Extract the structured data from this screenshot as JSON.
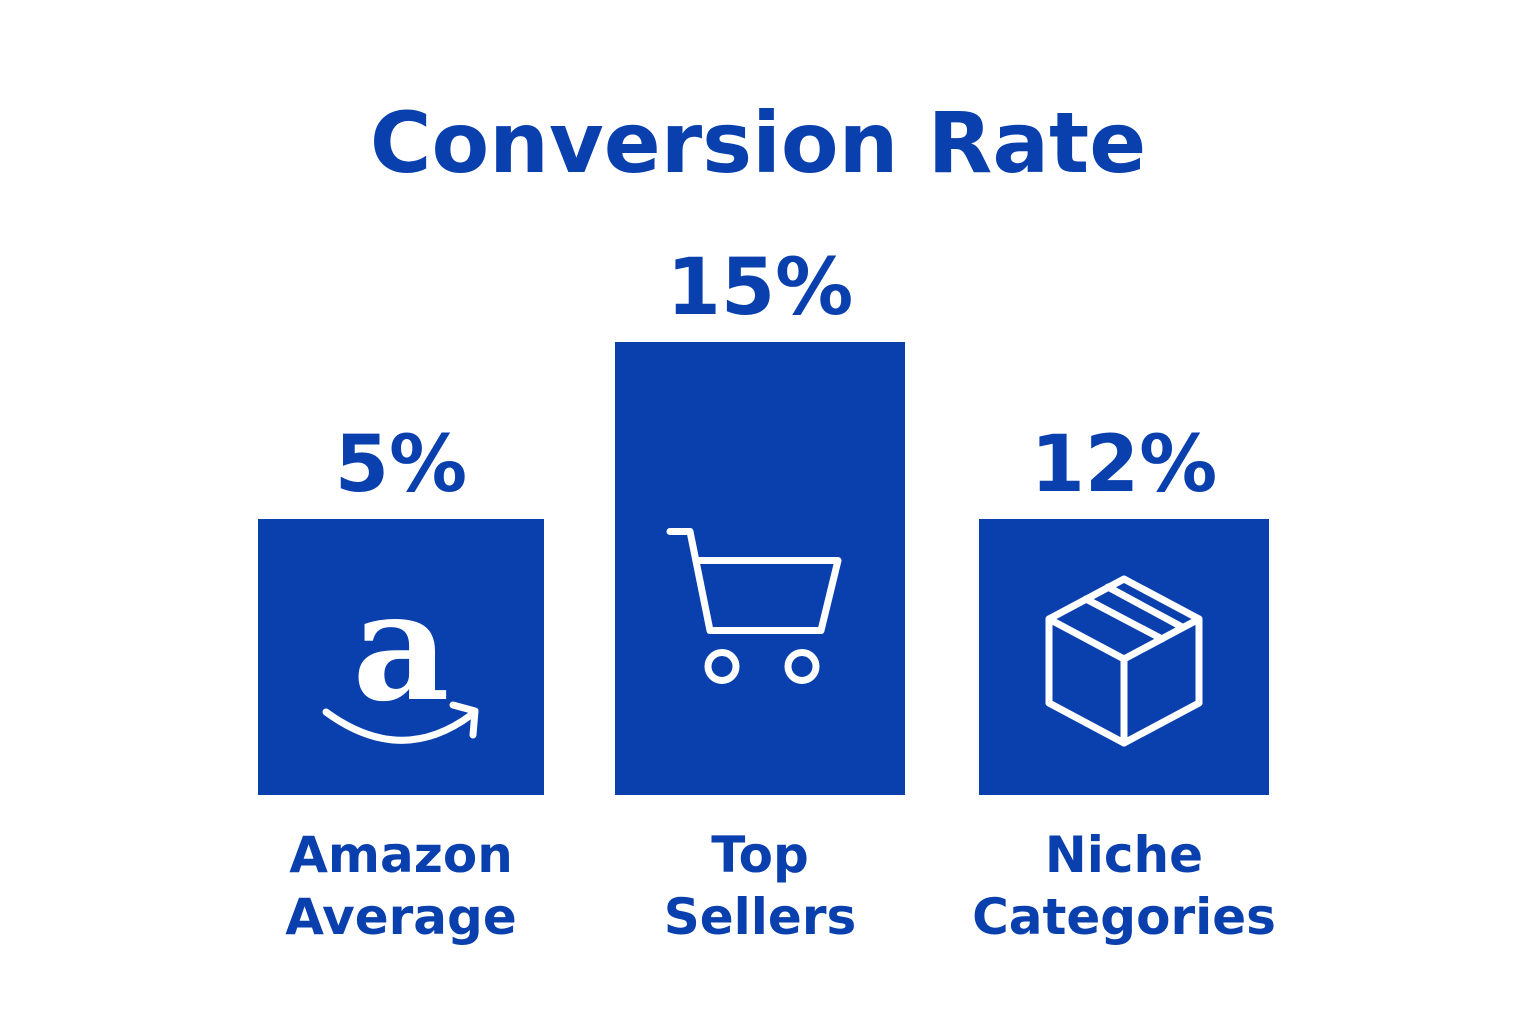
{
  "chart_data": {
    "type": "bar",
    "title": "Conversion Rate",
    "categories": [
      "Amazon Average",
      "Top Sellers",
      "Niche Categories"
    ],
    "category_lines": [
      [
        "Amazon",
        "Average"
      ],
      [
        "Top",
        "Sellers"
      ],
      [
        "Niche",
        "Categories"
      ]
    ],
    "values": [
      5,
      15,
      12
    ],
    "value_labels": [
      "5%",
      "15%",
      "12%"
    ],
    "icons": [
      "amazon-logo-icon",
      "shopping-cart-icon",
      "package-box-icon"
    ],
    "grid": false,
    "legend": "none",
    "bar_color": "#0a3fae",
    "text_color": "#0a3fae"
  }
}
